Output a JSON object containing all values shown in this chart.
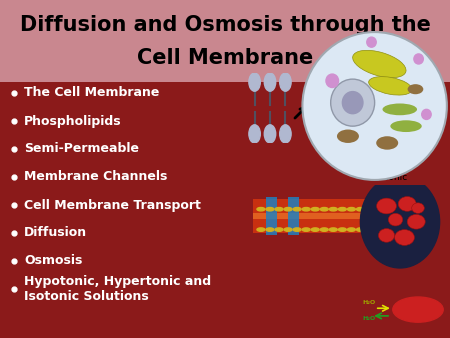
{
  "title_line1": "Diffusion and Osmosis through the",
  "title_line2": "Cell Membrane",
  "title_bg_color": "#c9878f",
  "body_bg_color": "#8b1a1a",
  "title_text_color": "#000000",
  "bullet_text_color": "#ffffff",
  "bullet_points": [
    "The Cell Membrane",
    "Phospholipids",
    "Semi-Permeable",
    "Membrane Channels",
    "Cell Membrane Transport",
    "Diffusion",
    "Osmosis",
    "Hypotonic, Hypertonic and\nIsotonic Solutions"
  ],
  "title_fontsize": 15,
  "bullet_fontsize": 9,
  "figsize": [
    4.5,
    3.38
  ],
  "dpi": 100
}
